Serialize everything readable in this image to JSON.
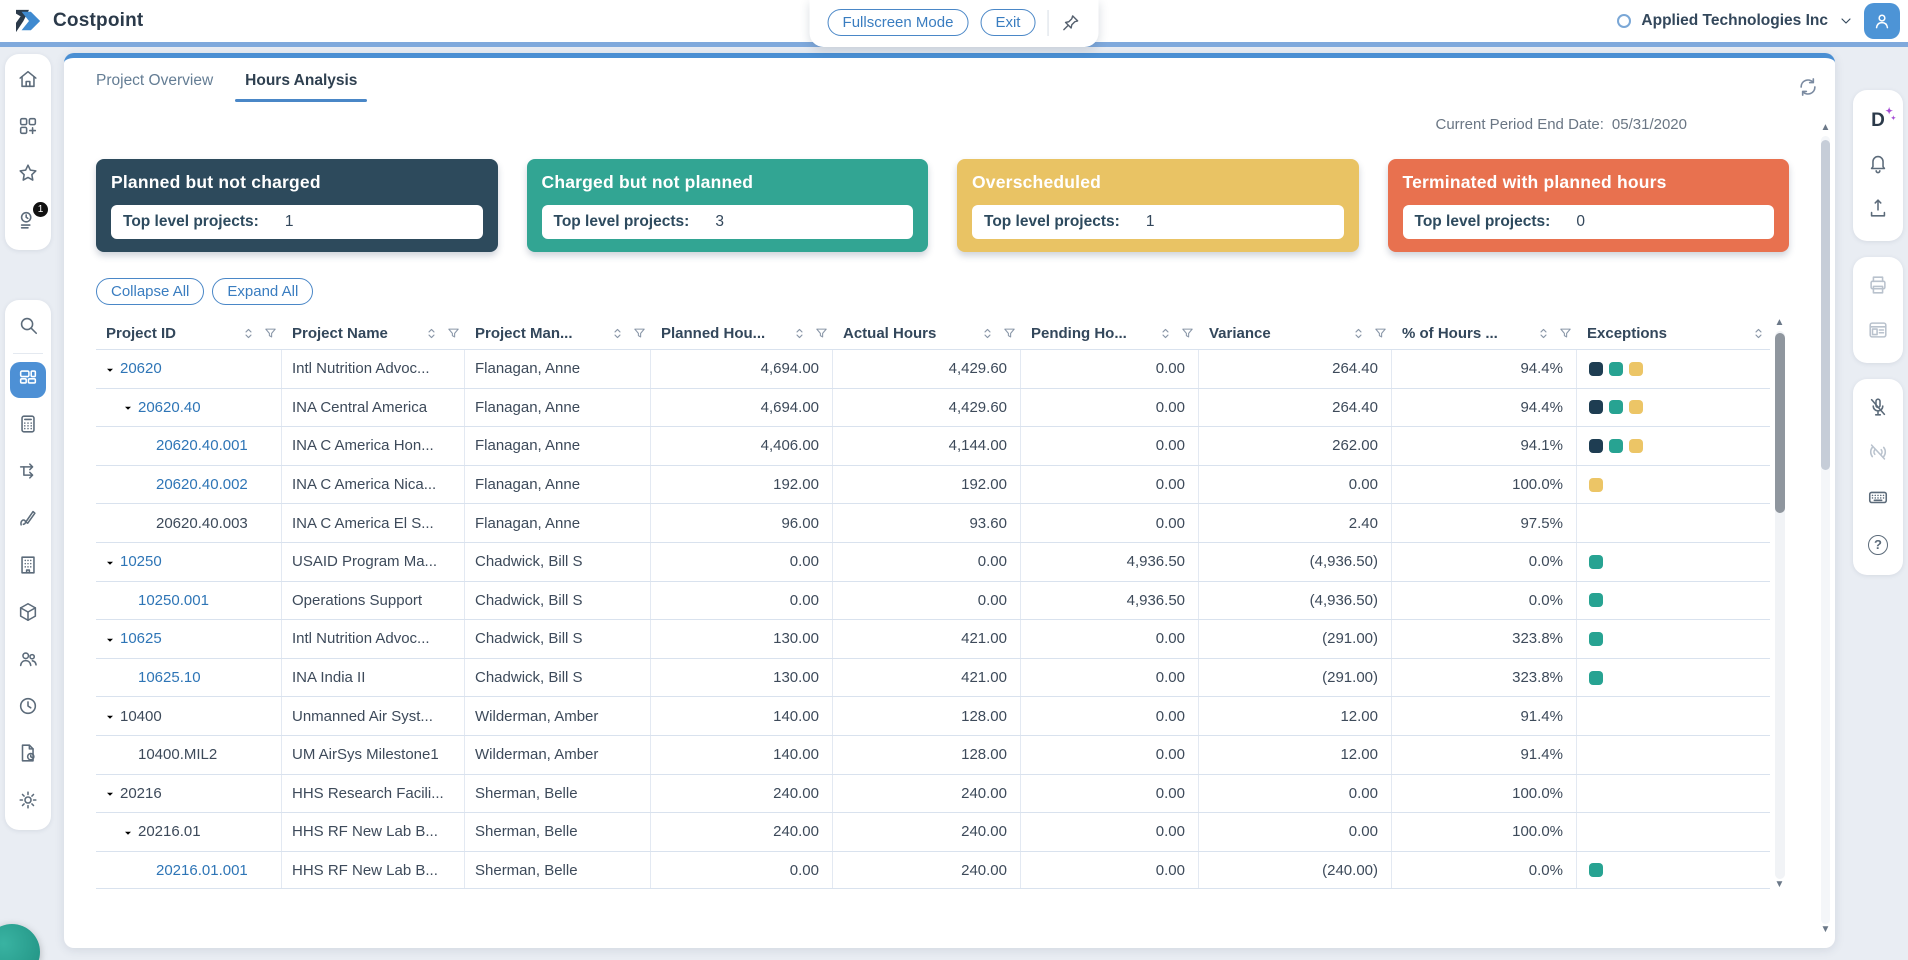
{
  "header": {
    "app_name": "Costpoint",
    "fullscreen_button": "Fullscreen Mode",
    "exit_button": "Exit",
    "company_name": "Applied Technologies Inc"
  },
  "left_sidebar": {
    "group_top": [
      {
        "icon": "home-icon"
      },
      {
        "icon": "apps-add-icon"
      },
      {
        "icon": "favorites-star-icon"
      },
      {
        "icon": "timesheet-icon",
        "badge": "1"
      }
    ],
    "group_search": [
      {
        "icon": "search-icon"
      }
    ],
    "group_modules": [
      {
        "icon": "dashboard-icon",
        "active": true
      },
      {
        "icon": "calculator-icon"
      },
      {
        "icon": "workflow-icon"
      },
      {
        "icon": "pen-icon"
      },
      {
        "icon": "building-icon"
      },
      {
        "icon": "package-icon"
      },
      {
        "icon": "people-icon"
      },
      {
        "icon": "clock-icon"
      },
      {
        "icon": "file-clock-icon"
      },
      {
        "icon": "settings-gear-icon"
      }
    ]
  },
  "right_sidebar": [
    {
      "items": [
        {
          "icon": "deltek-ai-icon"
        },
        {
          "icon": "bell-icon"
        },
        {
          "icon": "import-export-icon"
        }
      ]
    },
    {
      "items": [
        {
          "icon": "printer-icon",
          "disabled": true
        },
        {
          "icon": "form-layout-icon",
          "disabled": true
        }
      ]
    },
    {
      "items": [
        {
          "icon": "mic-off-icon"
        },
        {
          "icon": "audio-off-icon",
          "disabled": true
        },
        {
          "icon": "keyboard-icon"
        },
        {
          "icon": "help-icon"
        }
      ]
    }
  ],
  "tabs": [
    {
      "label": "Project Overview",
      "active": false
    },
    {
      "label": "Hours Analysis",
      "active": true
    }
  ],
  "period": {
    "label": "Current Period End Date:",
    "value": "05/31/2020"
  },
  "summary_cards": [
    {
      "title": "Planned but not charged",
      "label": "Top level projects:",
      "value": "1",
      "color": "#2d4a5c"
    },
    {
      "title": "Charged but not planned",
      "label": "Top level projects:",
      "value": "3",
      "color": "#32a593"
    },
    {
      "title": "Overscheduled",
      "label": "Top level projects:",
      "value": "1",
      "color": "#e9c364"
    },
    {
      "title": "Terminated with planned hours",
      "label": "Top level projects:",
      "value": "0",
      "color": "#e8714f"
    }
  ],
  "toolbar": {
    "collapse_all": "Collapse All",
    "expand_all": "Expand All"
  },
  "exception_colors": {
    "navy": "#1e3d52",
    "teal": "#27a392",
    "gold": "#ecc566"
  },
  "table": {
    "columns": [
      {
        "label": "Project ID",
        "filter": true
      },
      {
        "label": "Project Name",
        "filter": true
      },
      {
        "label": "Project Man...",
        "filter": true
      },
      {
        "label": "Planned Hou...",
        "filter": true
      },
      {
        "label": "Actual Hours",
        "filter": true
      },
      {
        "label": "Pending Ho...",
        "filter": true
      },
      {
        "label": "Variance",
        "filter": true
      },
      {
        "label": "% of Hours ...",
        "filter": true
      },
      {
        "label": "Exceptions",
        "filter": false
      }
    ],
    "rows": [
      {
        "id": "20620",
        "level": 0,
        "expand": true,
        "link": true,
        "name": "Intl Nutrition Advoc...",
        "manager": "Flanagan, Anne",
        "planned": "4,694.00",
        "actual": "4,429.60",
        "pending": "0.00",
        "variance": "264.40",
        "pct": "94.4%",
        "exceptions": [
          "navy",
          "teal",
          "gold"
        ]
      },
      {
        "id": "20620.40",
        "level": 1,
        "expand": true,
        "link": true,
        "name": "INA Central America",
        "manager": "Flanagan, Anne",
        "planned": "4,694.00",
        "actual": "4,429.60",
        "pending": "0.00",
        "variance": "264.40",
        "pct": "94.4%",
        "exceptions": [
          "navy",
          "teal",
          "gold"
        ]
      },
      {
        "id": "20620.40.001",
        "level": 2,
        "expand": false,
        "link": true,
        "name": "INA C America Hon...",
        "manager": "Flanagan, Anne",
        "planned": "4,406.00",
        "actual": "4,144.00",
        "pending": "0.00",
        "variance": "262.00",
        "pct": "94.1%",
        "exceptions": [
          "navy",
          "teal",
          "gold"
        ]
      },
      {
        "id": "20620.40.002",
        "level": 2,
        "expand": false,
        "link": true,
        "name": "INA C America Nica...",
        "manager": "Flanagan, Anne",
        "planned": "192.00",
        "actual": "192.00",
        "pending": "0.00",
        "variance": "0.00",
        "pct": "100.0%",
        "exceptions": [
          "gold"
        ]
      },
      {
        "id": "20620.40.003",
        "level": 2,
        "expand": false,
        "link": false,
        "name": "INA C America El S...",
        "manager": "Flanagan, Anne",
        "planned": "96.00",
        "actual": "93.60",
        "pending": "0.00",
        "variance": "2.40",
        "pct": "97.5%",
        "exceptions": []
      },
      {
        "id": "10250",
        "level": 0,
        "expand": true,
        "link": true,
        "name": "USAID Program Ma...",
        "manager": "Chadwick, Bill S",
        "planned": "0.00",
        "actual": "0.00",
        "pending": "4,936.50",
        "variance": "(4,936.50)",
        "pct": "0.0%",
        "exceptions": [
          "teal"
        ]
      },
      {
        "id": "10250.001",
        "level": 1,
        "expand": false,
        "link": true,
        "name": "Operations Support",
        "manager": "Chadwick, Bill S",
        "planned": "0.00",
        "actual": "0.00",
        "pending": "4,936.50",
        "variance": "(4,936.50)",
        "pct": "0.0%",
        "exceptions": [
          "teal"
        ]
      },
      {
        "id": "10625",
        "level": 0,
        "expand": true,
        "link": true,
        "name": "Intl Nutrition Advoc...",
        "manager": "Chadwick, Bill S",
        "planned": "130.00",
        "actual": "421.00",
        "pending": "0.00",
        "variance": "(291.00)",
        "pct": "323.8%",
        "exceptions": [
          "teal"
        ]
      },
      {
        "id": "10625.10",
        "level": 1,
        "expand": false,
        "link": true,
        "name": "INA India II",
        "manager": "Chadwick, Bill S",
        "planned": "130.00",
        "actual": "421.00",
        "pending": "0.00",
        "variance": "(291.00)",
        "pct": "323.8%",
        "exceptions": [
          "teal"
        ]
      },
      {
        "id": "10400",
        "level": 0,
        "expand": true,
        "link": false,
        "name": "Unmanned Air Syst...",
        "manager": "Wilderman, Amber",
        "planned": "140.00",
        "actual": "128.00",
        "pending": "0.00",
        "variance": "12.00",
        "pct": "91.4%",
        "exceptions": []
      },
      {
        "id": "10400.MIL2",
        "level": 1,
        "expand": false,
        "link": false,
        "name": "UM AirSys Milestone1",
        "manager": "Wilderman, Amber",
        "planned": "140.00",
        "actual": "128.00",
        "pending": "0.00",
        "variance": "12.00",
        "pct": "91.4%",
        "exceptions": []
      },
      {
        "id": "20216",
        "level": 0,
        "expand": true,
        "link": false,
        "name": "HHS Research Facili...",
        "manager": "Sherman, Belle",
        "planned": "240.00",
        "actual": "240.00",
        "pending": "0.00",
        "variance": "0.00",
        "pct": "100.0%",
        "exceptions": []
      },
      {
        "id": "20216.01",
        "level": 1,
        "expand": true,
        "link": false,
        "name": "HHS RF New Lab B...",
        "manager": "Sherman, Belle",
        "planned": "240.00",
        "actual": "240.00",
        "pending": "0.00",
        "variance": "0.00",
        "pct": "100.0%",
        "exceptions": []
      },
      {
        "id": "20216.01.001",
        "level": 2,
        "expand": false,
        "link": true,
        "name": "HHS RF New Lab B...",
        "manager": "Sherman, Belle",
        "planned": "0.00",
        "actual": "240.00",
        "pending": "0.00",
        "variance": "(240.00)",
        "pct": "0.0%",
        "exceptions": [
          "teal"
        ]
      }
    ]
  }
}
